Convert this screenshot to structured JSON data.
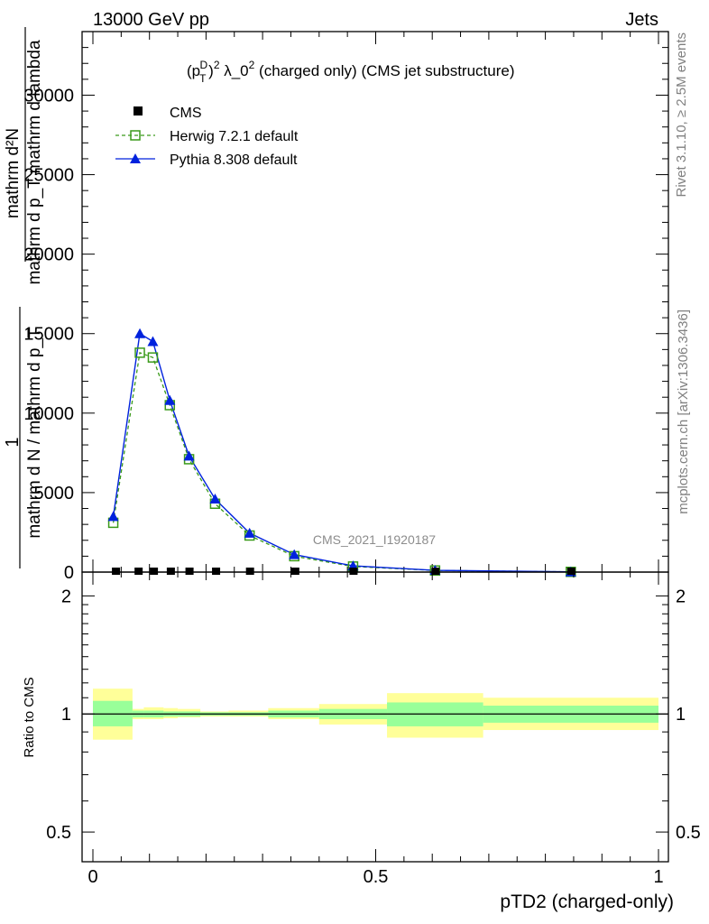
{
  "header": {
    "left": "13000 GeV pp",
    "right": "Jets"
  },
  "side": {
    "rivet": "Rivet 3.1.10, ≥ 2.5M events",
    "mcplots": "mcplots.cern.ch [arXiv:1306.3436]"
  },
  "plot_title": {
    "prefix": "(p",
    "sup1": "D",
    "sub1": "T",
    "mid": ")",
    "sup2": "2",
    "lambda": " λ_0",
    "sup3": "2",
    "suffix": " (charged only) (CMS jet substructure)"
  },
  "watermark": "CMS_2021_I1920187",
  "ylabel_main": {
    "numerator_1": "1",
    "denominator_1": "mathrm d N / mathrm d p_T",
    "numerator_2": "mathrm d²N",
    "denominator_2": "mathrm d p_T mathrm d lambda"
  },
  "ylabel_ratio": "Ratio to CMS",
  "xlabel": "pTD2 (charged-only)",
  "colors": {
    "herwig": "#3a9a1a",
    "pythia": "#0022dd",
    "band_inner": "#99ff99",
    "band_outer": "#ffff99"
  },
  "chart_data": [
    {
      "type": "line",
      "panel": "main",
      "xlim": [
        0,
        1
      ],
      "ylim": [
        0,
        34000
      ],
      "y_ticks": [
        0,
        5000,
        10000,
        15000,
        20000,
        25000,
        30000
      ],
      "y_tick_labels": [
        "0",
        "5000",
        "10000",
        "15000",
        "20000",
        "25000",
        "30000"
      ],
      "series": [
        {
          "name": "CMS",
          "style": "black-square",
          "x": [
            0.04,
            0.08,
            0.107,
            0.137,
            0.17,
            0.217,
            0.277,
            0.357,
            0.46,
            0.605,
            0.845
          ],
          "y": [
            0,
            0,
            0,
            0,
            0,
            0,
            0,
            0,
            0,
            0,
            0
          ]
        },
        {
          "name": "Herwig 7.2.1 default",
          "style": "green-open-square-dashed",
          "x": [
            0.036,
            0.083,
            0.106,
            0.136,
            0.17,
            0.216,
            0.277,
            0.356,
            0.46,
            0.605,
            0.845
          ],
          "y": [
            3100,
            13800,
            13500,
            10500,
            7100,
            4300,
            2300,
            1000,
            350,
            100,
            15
          ]
        },
        {
          "name": "Pythia 8.308 default",
          "style": "blue-triangle-solid",
          "x": [
            0.036,
            0.083,
            0.106,
            0.136,
            0.17,
            0.216,
            0.277,
            0.356,
            0.46,
            0.605,
            0.845
          ],
          "y": [
            3500,
            15000,
            14500,
            10800,
            7300,
            4600,
            2450,
            1100,
            390,
            110,
            15
          ]
        }
      ]
    },
    {
      "type": "area",
      "panel": "ratio",
      "ylabel": "Ratio to CMS",
      "xlabel": "pTD2 (charged-only)",
      "xlim": [
        0,
        1
      ],
      "ylim": [
        0.42,
        2.3
      ],
      "scale": "log",
      "y_ticks": [
        0.5,
        1,
        2
      ],
      "y_tick_labels": [
        "0.5",
        "1",
        "2"
      ],
      "x_ticks": [
        0,
        0.5,
        1
      ],
      "x_tick_labels": [
        "0",
        "0.5",
        "1"
      ],
      "bins": [
        {
          "x0": 0.0,
          "x1": 0.07,
          "inner": [
            0.93,
            1.08
          ],
          "outer": [
            0.86,
            1.16
          ]
        },
        {
          "x0": 0.07,
          "x1": 0.09,
          "inner": [
            0.98,
            1.02
          ],
          "outer": [
            0.97,
            1.03
          ]
        },
        {
          "x0": 0.09,
          "x1": 0.125,
          "inner": [
            0.98,
            1.02
          ],
          "outer": [
            0.97,
            1.04
          ]
        },
        {
          "x0": 0.125,
          "x1": 0.15,
          "inner": [
            0.985,
            1.015
          ],
          "outer": [
            0.975,
            1.035
          ]
        },
        {
          "x0": 0.15,
          "x1": 0.19,
          "inner": [
            0.985,
            1.015
          ],
          "outer": [
            0.98,
            1.03
          ]
        },
        {
          "x0": 0.19,
          "x1": 0.24,
          "inner": [
            0.99,
            1.01
          ],
          "outer": [
            0.985,
            1.015
          ]
        },
        {
          "x0": 0.24,
          "x1": 0.31,
          "inner": [
            0.99,
            1.01
          ],
          "outer": [
            0.985,
            1.02
          ]
        },
        {
          "x0": 0.31,
          "x1": 0.4,
          "inner": [
            0.98,
            1.02
          ],
          "outer": [
            0.97,
            1.035
          ]
        },
        {
          "x0": 0.4,
          "x1": 0.52,
          "inner": [
            0.97,
            1.03
          ],
          "outer": [
            0.94,
            1.06
          ]
        },
        {
          "x0": 0.52,
          "x1": 0.69,
          "inner": [
            0.93,
            1.07
          ],
          "outer": [
            0.87,
            1.13
          ]
        },
        {
          "x0": 0.69,
          "x1": 1.0,
          "inner": [
            0.95,
            1.05
          ],
          "outer": [
            0.91,
            1.1
          ]
        }
      ]
    }
  ]
}
